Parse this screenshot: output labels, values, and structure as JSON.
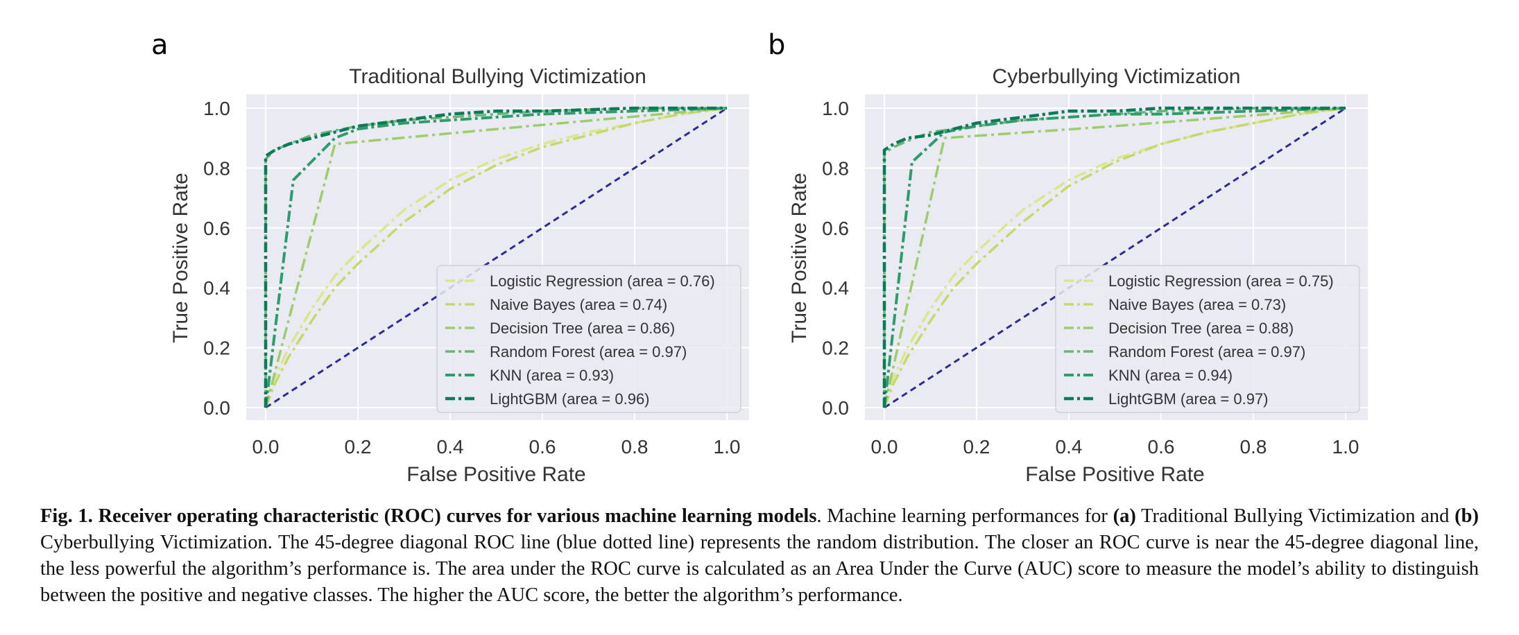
{
  "colors": {
    "plot_bg": "#eaeaf2",
    "grid": "#ffffff",
    "diagonal": "#2b2b95",
    "series": [
      "#dde58a",
      "#c4d96a",
      "#9ccc6c",
      "#6ab575",
      "#2f9b6c",
      "#0b7a57"
    ]
  },
  "chart_data": [
    {
      "type": "line",
      "panel_label": "a",
      "title": "Traditional Bullying Victimization",
      "xlabel": "False Positive Rate",
      "ylabel": "True Positive Rate",
      "xlim": [
        0,
        1
      ],
      "ylim": [
        0,
        1
      ],
      "xticks": [
        "0.0",
        "0.2",
        "0.4",
        "0.6",
        "0.8",
        "1.0"
      ],
      "yticks": [
        "0.0",
        "0.2",
        "0.4",
        "0.6",
        "0.8",
        "1.0"
      ],
      "grid": true,
      "legend_position": "lower-right",
      "diagonal": {
        "x": [
          0,
          1
        ],
        "y": [
          0,
          1
        ],
        "style": "dashed"
      },
      "series": [
        {
          "name": "Logistic Regression (area = 0.76)",
          "x": [
            0,
            0.02,
            0.05,
            0.1,
            0.15,
            0.2,
            0.3,
            0.4,
            0.5,
            0.6,
            0.7,
            0.8,
            0.9,
            1.0
          ],
          "y": [
            0,
            0.1,
            0.2,
            0.33,
            0.44,
            0.52,
            0.66,
            0.76,
            0.83,
            0.88,
            0.92,
            0.95,
            0.98,
            1.0
          ]
        },
        {
          "name": "Naive Bayes (area = 0.74)",
          "x": [
            0,
            0.02,
            0.05,
            0.1,
            0.15,
            0.2,
            0.3,
            0.4,
            0.5,
            0.6,
            0.7,
            0.8,
            0.9,
            1.0
          ],
          "y": [
            0,
            0.08,
            0.17,
            0.29,
            0.4,
            0.48,
            0.62,
            0.73,
            0.81,
            0.87,
            0.91,
            0.95,
            0.98,
            1.0
          ]
        },
        {
          "name": "Decision Tree (area = 0.86)",
          "x": [
            0,
            0.15,
            0.5,
            1.0
          ],
          "y": [
            0,
            0.88,
            0.93,
            1.0
          ]
        },
        {
          "name": "Random Forest (area = 0.97)",
          "x": [
            0,
            0.0,
            0.02,
            0.05,
            0.1,
            0.2,
            0.3,
            0.4,
            0.5,
            0.6,
            0.8,
            1.0
          ],
          "y": [
            0,
            0.83,
            0.86,
            0.88,
            0.91,
            0.94,
            0.96,
            0.97,
            0.98,
            0.99,
            1.0,
            1.0
          ]
        },
        {
          "name": "KNN (area = 0.93)",
          "x": [
            0,
            0.06,
            0.15,
            0.2,
            0.3,
            0.4,
            0.5,
            0.6,
            0.8,
            1.0
          ],
          "y": [
            0,
            0.76,
            0.9,
            0.93,
            0.95,
            0.96,
            0.97,
            0.98,
            0.99,
            1.0
          ]
        },
        {
          "name": "LightGBM (area = 0.96)",
          "x": [
            0,
            0.0,
            0.02,
            0.05,
            0.1,
            0.15,
            0.2,
            0.3,
            0.4,
            0.5,
            0.6,
            0.8,
            1.0
          ],
          "y": [
            0,
            0.84,
            0.86,
            0.88,
            0.9,
            0.92,
            0.94,
            0.96,
            0.98,
            0.99,
            0.99,
            1.0,
            1.0
          ]
        }
      ]
    },
    {
      "type": "line",
      "panel_label": "b",
      "title": "Cyberbullying Victimization",
      "xlabel": "False Positive Rate",
      "ylabel": "True Positive Rate",
      "xlim": [
        0,
        1
      ],
      "ylim": [
        0,
        1
      ],
      "xticks": [
        "0.0",
        "0.2",
        "0.4",
        "0.6",
        "0.8",
        "1.0"
      ],
      "yticks": [
        "0.0",
        "0.2",
        "0.4",
        "0.6",
        "0.8",
        "1.0"
      ],
      "grid": true,
      "legend_position": "lower-right",
      "diagonal": {
        "x": [
          0,
          1
        ],
        "y": [
          0,
          1
        ],
        "style": "dashed"
      },
      "series": [
        {
          "name": "Logistic Regression (area = 0.75)",
          "x": [
            0,
            0.02,
            0.05,
            0.1,
            0.15,
            0.2,
            0.3,
            0.4,
            0.5,
            0.6,
            0.7,
            0.8,
            0.9,
            1.0
          ],
          "y": [
            0,
            0.1,
            0.2,
            0.33,
            0.44,
            0.52,
            0.66,
            0.76,
            0.83,
            0.88,
            0.92,
            0.95,
            0.98,
            1.0
          ]
        },
        {
          "name": "Naive Bayes (area = 0.73)",
          "x": [
            0,
            0.02,
            0.05,
            0.1,
            0.15,
            0.2,
            0.3,
            0.4,
            0.5,
            0.6,
            0.7,
            0.8,
            0.9,
            1.0
          ],
          "y": [
            0,
            0.08,
            0.17,
            0.29,
            0.4,
            0.48,
            0.62,
            0.74,
            0.82,
            0.88,
            0.92,
            0.95,
            0.98,
            1.0
          ]
        },
        {
          "name": "Decision Tree (area = 0.88)",
          "x": [
            0,
            0.13,
            0.5,
            1.0
          ],
          "y": [
            0,
            0.9,
            0.94,
            1.0
          ]
        },
        {
          "name": "Random Forest (area = 0.97)",
          "x": [
            0,
            0.0,
            0.02,
            0.05,
            0.1,
            0.2,
            0.3,
            0.4,
            0.5,
            0.6,
            0.8,
            1.0
          ],
          "y": [
            0,
            0.85,
            0.87,
            0.89,
            0.92,
            0.94,
            0.96,
            0.97,
            0.98,
            0.99,
            1.0,
            1.0
          ]
        },
        {
          "name": "KNN (area = 0.94)",
          "x": [
            0,
            0.06,
            0.13,
            0.2,
            0.3,
            0.4,
            0.5,
            0.6,
            0.8,
            1.0
          ],
          "y": [
            0,
            0.82,
            0.92,
            0.94,
            0.96,
            0.97,
            0.98,
            0.98,
            0.99,
            1.0
          ]
        },
        {
          "name": "LightGBM (area = 0.97)",
          "x": [
            0,
            0.0,
            0.02,
            0.05,
            0.1,
            0.15,
            0.2,
            0.3,
            0.4,
            0.5,
            0.6,
            0.8,
            1.0
          ],
          "y": [
            0,
            0.86,
            0.88,
            0.9,
            0.91,
            0.93,
            0.95,
            0.97,
            0.99,
            0.99,
            1.0,
            1.0,
            1.0
          ]
        }
      ]
    }
  ],
  "caption": {
    "fig_label": "Fig. 1.",
    "heading": "Receiver operating characteristic (ROC) curves for various machine learning models",
    "text_1": ". Machine learning performances for ",
    "bold_a": "(a)",
    "text_2": " Traditional Bullying Victimization and ",
    "bold_b": "(b)",
    "text_3": " Cyberbullying Victimization. The 45-degree diagonal ROC line (blue dotted line) represents the random distribution. The closer an ROC curve is near the 45-degree diagonal line, the less powerful the algorithm’s performance is. The area under the ROC curve is calculated as an Area Under the Curve (AUC) score to measure the model’s ability to distinguish between the positive and negative classes. The higher the AUC score, the better the algorithm’s performance."
  }
}
